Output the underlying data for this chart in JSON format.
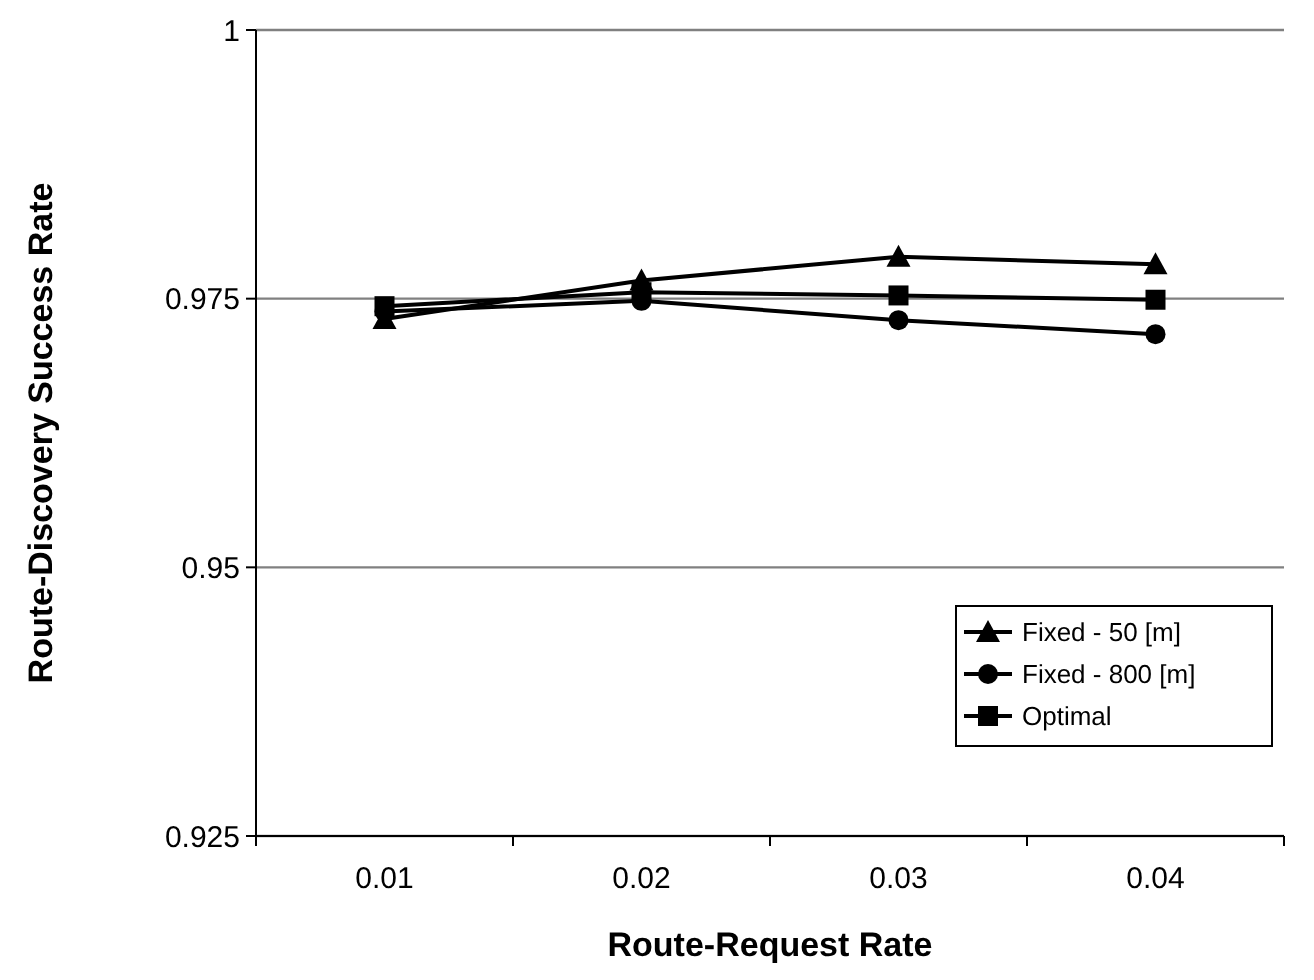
{
  "chart_data": {
    "type": "line",
    "xlabel": "Route-Request Rate",
    "ylabel": "Route-Discovery Success Rate",
    "categories": [
      "0.01",
      "0.02",
      "0.03",
      "0.04"
    ],
    "series": [
      {
        "name": "Fixed - 50 [m]",
        "color": "#000000",
        "marker": "triangle",
        "values": [
          0.9731,
          0.9767,
          0.9789,
          0.9782
        ]
      },
      {
        "name": "Fixed - 800 [m]",
        "color": "#000000",
        "marker": "circle",
        "values": [
          0.9738,
          0.9748,
          0.973,
          0.9717
        ]
      },
      {
        "name": "Optimal",
        "color": "#000000",
        "marker": "square",
        "values": [
          0.9743,
          0.9756,
          0.9753,
          0.9749
        ]
      }
    ],
    "ylim": [
      0.925,
      1
    ],
    "yticks": [
      0.925,
      0.95,
      0.975,
      1
    ],
    "grid": "y",
    "legend": "bottom right",
    "line_style": "solid"
  }
}
